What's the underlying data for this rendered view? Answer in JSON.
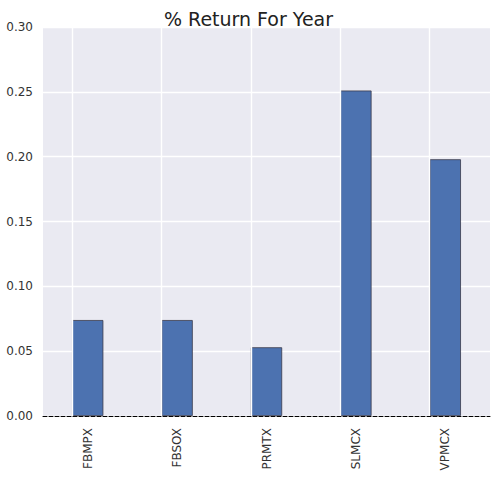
{
  "chart_data": {
    "type": "bar",
    "title": "% Return For Year",
    "categories": [
      "FBMPX",
      "FBSOX",
      "PRMTX",
      "SLMCX",
      "VPMCX"
    ],
    "values": [
      0.074,
      0.074,
      0.053,
      0.251,
      0.198
    ],
    "color": "#4c72b0",
    "ylim": [
      0,
      0.3
    ],
    "yticks": [
      {
        "value": 0,
        "label": "0.00"
      },
      {
        "value": 0.05,
        "label": "0.05"
      },
      {
        "value": 0.1,
        "label": "0.10"
      },
      {
        "value": 0.15,
        "label": "0.15"
      },
      {
        "value": 0.2,
        "label": "0.20"
      },
      {
        "value": 0.25,
        "label": "0.25"
      },
      {
        "value": 0.3,
        "label": "0.30"
      }
    ],
    "grid": true
  }
}
